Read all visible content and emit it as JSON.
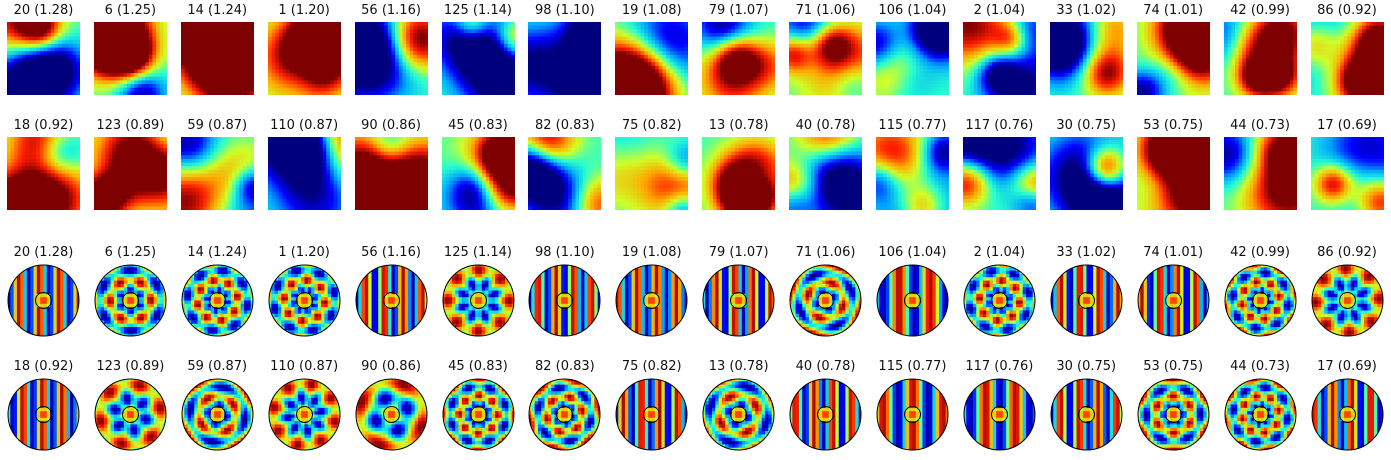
{
  "chart_data": {
    "type": "heatmap",
    "colormap": "jet",
    "colormap_stops": [
      "#00007f",
      "#0000ff",
      "#00a4ff",
      "#27ffcf",
      "#cfff27",
      "#ffa500",
      "#ff1e00",
      "#7f0000"
    ],
    "description_free": true,
    "panels": [
      {
        "row": 0,
        "shape": "square",
        "titles": [
          "20 (1.28)",
          "6 (1.25)",
          "14 (1.24)",
          "1 (1.20)",
          "56 (1.16)",
          "125 (1.14)",
          "98 (1.10)",
          "19 (1.08)",
          "79 (1.07)",
          "71 (1.06)",
          "106 (1.04)",
          "2 (1.04)",
          "33 (1.02)",
          "74 (1.01)",
          "42 (0.99)",
          "86 (0.92)"
        ]
      },
      {
        "row": 1,
        "shape": "square",
        "titles": [
          "18 (0.92)",
          "123 (0.89)",
          "59 (0.87)",
          "110 (0.87)",
          "90 (0.86)",
          "45 (0.83)",
          "82 (0.83)",
          "75 (0.82)",
          "13 (0.78)",
          "40 (0.78)",
          "115 (0.77)",
          "117 (0.76)",
          "30 (0.75)",
          "53 (0.75)",
          "44 (0.73)",
          "17 (0.69)"
        ]
      },
      {
        "row": 2,
        "shape": "circle",
        "titles": [
          "20 (1.28)",
          "6 (1.25)",
          "14 (1.24)",
          "1 (1.20)",
          "56 (1.16)",
          "125 (1.14)",
          "98 (1.10)",
          "19 (1.08)",
          "79 (1.07)",
          "71 (1.06)",
          "106 (1.04)",
          "2 (1.04)",
          "33 (1.02)",
          "74 (1.01)",
          "42 (0.99)",
          "86 (0.92)"
        ]
      },
      {
        "row": 3,
        "shape": "circle",
        "titles": [
          "18 (0.92)",
          "123 (0.89)",
          "59 (0.87)",
          "110 (0.87)",
          "90 (0.86)",
          "45 (0.83)",
          "82 (0.83)",
          "75 (0.82)",
          "13 (0.78)",
          "40 (0.78)",
          "115 (0.77)",
          "117 (0.76)",
          "30 (0.75)",
          "53 (0.75)",
          "44 (0.73)",
          "17 (0.69)"
        ]
      }
    ]
  }
}
